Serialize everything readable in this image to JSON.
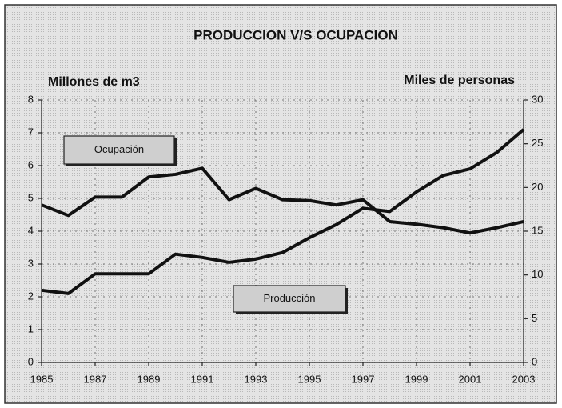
{
  "chart_data": {
    "type": "line",
    "title": "PRODUCCION V/S OCUPACION",
    "y_label": "Millones de m3",
    "y2_label": "Miles de personas",
    "x": [
      1985,
      1986,
      1987,
      1988,
      1989,
      1990,
      1991,
      1992,
      1993,
      1994,
      1995,
      1996,
      1997,
      1998,
      1999,
      2000,
      2001,
      2002,
      2003
    ],
    "xlim": [
      1985,
      2003
    ],
    "xticks": [
      1985,
      1987,
      1989,
      1991,
      1993,
      1995,
      1997,
      1999,
      2001,
      2003
    ],
    "ylim": [
      0,
      8
    ],
    "yticks": [
      0,
      1,
      2,
      3,
      4,
      5,
      6,
      7,
      8
    ],
    "y2lim": [
      0,
      30
    ],
    "y2ticks": [
      0,
      5,
      10,
      15,
      20,
      25,
      30
    ],
    "grid": true,
    "series": [
      {
        "name": "Producción",
        "color": "#111111",
        "values": [
          2.2,
          2.1,
          2.7,
          2.7,
          2.7,
          3.3,
          3.2,
          3.05,
          3.15,
          3.35,
          3.8,
          4.2,
          4.7,
          4.6,
          5.2,
          5.7,
          5.9,
          6.4,
          7.1
        ]
      },
      {
        "name": "Ocupación",
        "color": "#111111",
        "axis": "y2",
        "values": [
          18,
          16.8,
          18.9,
          18.9,
          21.2,
          21.5,
          22.2,
          18.6,
          19.9,
          18.6,
          18.5,
          18,
          18.6,
          16.1,
          15.8,
          15.4,
          14.8,
          15.4,
          16.1
        ]
      }
    ]
  }
}
